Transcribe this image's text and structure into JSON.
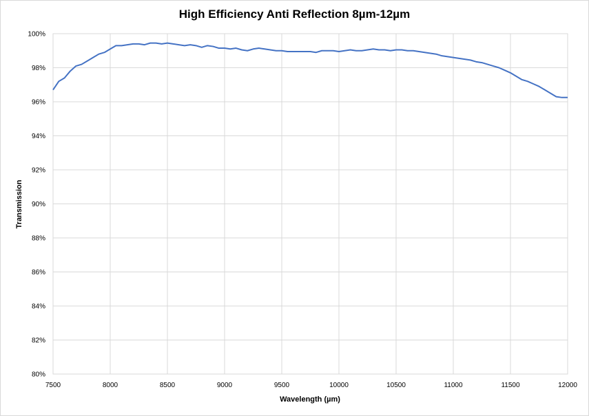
{
  "chart_data": {
    "type": "line",
    "title": "High Efficiency Anti Reflection 8µm-12µm",
    "xlabel": "Wavelength (µm)",
    "ylabel": "Transmission",
    "xlim": [
      7500,
      12000
    ],
    "ylim": [
      80,
      100
    ],
    "x_ticks": [
      7500,
      8000,
      8500,
      9000,
      9500,
      10000,
      10500,
      11000,
      11500,
      12000
    ],
    "y_ticks": [
      80,
      82,
      84,
      86,
      88,
      90,
      92,
      94,
      96,
      98,
      100
    ],
    "y_tick_format": "percent",
    "grid": true,
    "legend": "none",
    "series": [
      {
        "color": "#4472c4",
        "x": [
          7500,
          7550,
          7600,
          7650,
          7700,
          7750,
          7800,
          7850,
          7900,
          7950,
          8000,
          8050,
          8100,
          8150,
          8200,
          8250,
          8300,
          8350,
          8400,
          8450,
          8500,
          8550,
          8600,
          8650,
          8700,
          8750,
          8800,
          8850,
          8900,
          8950,
          9000,
          9050,
          9100,
          9150,
          9200,
          9250,
          9300,
          9350,
          9400,
          9450,
          9500,
          9550,
          9600,
          9650,
          9700,
          9750,
          9800,
          9850,
          9900,
          9950,
          10000,
          10050,
          10100,
          10150,
          10200,
          10250,
          10300,
          10350,
          10400,
          10450,
          10500,
          10550,
          10600,
          10650,
          10700,
          10750,
          10800,
          10850,
          10900,
          10950,
          11000,
          11050,
          11100,
          11150,
          11200,
          11250,
          11300,
          11350,
          11400,
          11450,
          11500,
          11550,
          11600,
          11650,
          11700,
          11750,
          11800,
          11850,
          11900,
          11950,
          12000
        ],
        "y": [
          96.7,
          97.2,
          97.4,
          97.8,
          98.1,
          98.2,
          98.4,
          98.6,
          98.8,
          98.9,
          99.1,
          99.3,
          99.3,
          99.35,
          99.4,
          99.4,
          99.35,
          99.45,
          99.45,
          99.4,
          99.45,
          99.4,
          99.35,
          99.3,
          99.35,
          99.3,
          99.2,
          99.3,
          99.25,
          99.15,
          99.15,
          99.1,
          99.15,
          99.05,
          99.0,
          99.1,
          99.15,
          99.1,
          99.05,
          99.0,
          99.0,
          98.95,
          98.95,
          98.95,
          98.95,
          98.95,
          98.9,
          99.0,
          99.0,
          99.0,
          98.95,
          99.0,
          99.05,
          99.0,
          99.0,
          99.05,
          99.1,
          99.05,
          99.05,
          99.0,
          99.05,
          99.05,
          99.0,
          99.0,
          98.95,
          98.9,
          98.85,
          98.8,
          98.7,
          98.65,
          98.6,
          98.55,
          98.5,
          98.45,
          98.35,
          98.3,
          98.2,
          98.1,
          98.0,
          97.85,
          97.7,
          97.5,
          97.3,
          97.2,
          97.05,
          96.9,
          96.7,
          96.5,
          96.3,
          96.25,
          96.25
        ]
      }
    ]
  }
}
